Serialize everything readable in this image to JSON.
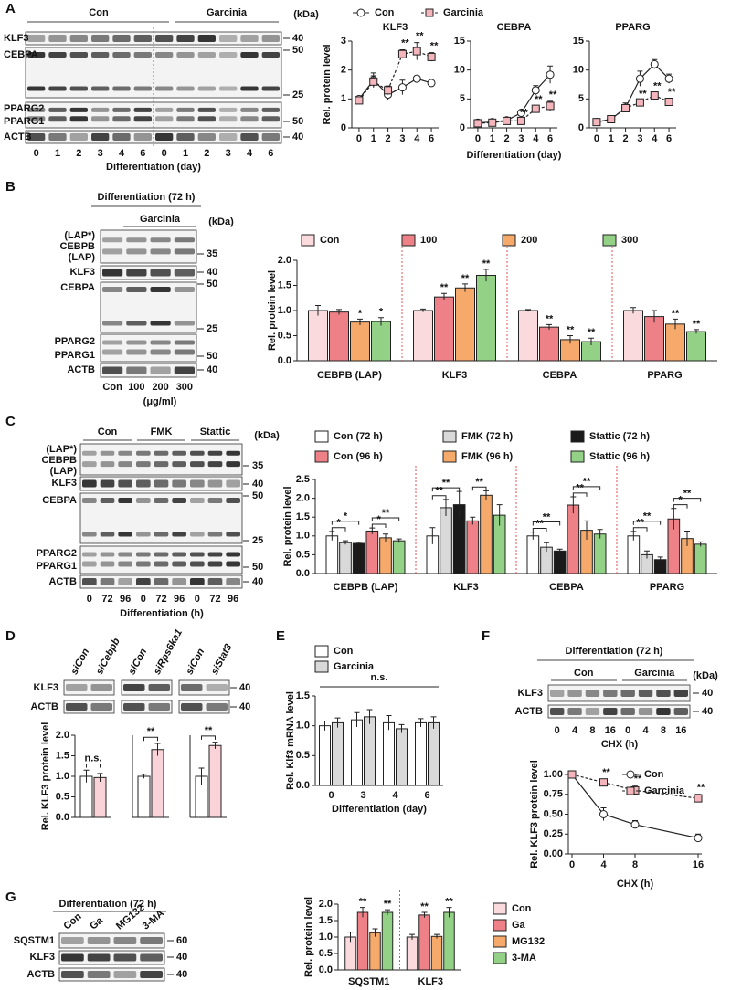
{
  "panel_labels": [
    "A",
    "B",
    "C",
    "D",
    "E",
    "F",
    "G"
  ],
  "blots": {
    "A": {
      "groups": [
        "Con",
        "Garcinia"
      ],
      "kda_header": "(kDa)",
      "rows": [
        "KLF3",
        "CEBPA",
        "PPARG2",
        "PPARG1",
        "ACTB"
      ],
      "markers": [
        "40",
        "50",
        "25",
        "50",
        "40"
      ],
      "lanes": [
        "0",
        "1",
        "2",
        "3",
        "4",
        "6",
        "0",
        "1",
        "2",
        "3",
        "4",
        "6"
      ],
      "xlabel": "Differentiation (day)"
    },
    "B": {
      "header": "Differentiation (72 h)",
      "group": "Garcinia",
      "kda_header": "(kDa)",
      "rows": [
        "(LAP*)",
        "CEBPB",
        "(LAP)",
        "KLF3",
        "CEBPA",
        "PPARG2",
        "PPARG1",
        "ACTB"
      ],
      "markers": [
        "35",
        "40",
        "50",
        "25",
        "50",
        "40"
      ],
      "lanes": [
        "Con",
        "100",
        "200",
        "300"
      ],
      "unit": "(μg/ml)"
    },
    "C": {
      "groups": [
        "Con",
        "FMK",
        "Stattic"
      ],
      "kda_header": "(kDa)",
      "rows": [
        "(LAP*)",
        "CEBPB",
        "(LAP)",
        "KLF3",
        "CEBPA",
        "PPARG2",
        "PPARG1",
        "ACTB"
      ],
      "markers": [
        "35",
        "40",
        "50",
        "25",
        "50",
        "40"
      ],
      "lanes": [
        "0",
        "72",
        "96",
        "0",
        "72",
        "96",
        "0",
        "72",
        "96"
      ],
      "xlabel": "Differentiation (h)"
    },
    "D": {
      "lanes": [
        "siCon",
        "siCebpb",
        "siCon",
        "siRps6ka1",
        "siCon",
        "siStat3"
      ],
      "rows": [
        "KLF3",
        "ACTB"
      ],
      "markers": [
        "40",
        "40"
      ]
    },
    "F": {
      "header": "Differentiation (72 h)",
      "groups": [
        "Con",
        "Garcinia"
      ],
      "kda_header": "(kDa)",
      "rows": [
        "KLF3",
        "ACTB"
      ],
      "markers": [
        "40",
        "40"
      ],
      "lanes": [
        "0",
        "4",
        "8",
        "16",
        "0",
        "4",
        "8",
        "16"
      ],
      "xlabel": "CHX (h)"
    },
    "G": {
      "header": "Differentiation (72 h)",
      "lanes": [
        "Con",
        "Ga",
        "MG132",
        "3-MA"
      ],
      "rows": [
        "SQSTM1",
        "KLF3",
        "ACTB"
      ],
      "markers": [
        "60",
        "40",
        "40"
      ]
    }
  },
  "chart_data": [
    {
      "type": "line",
      "title": "KLF3",
      "ylabel": "Rel. protein level",
      "categories": [
        "0",
        "1",
        "2",
        "3",
        "4",
        "6"
      ],
      "ylim": [
        0,
        3
      ],
      "yticks": [
        0,
        1,
        2,
        3
      ],
      "series": [
        {
          "name": "Con",
          "color": "#ffffff",
          "marker": "circle",
          "line": "solid",
          "values": [
            1.0,
            1.65,
            1.15,
            1.4,
            1.7,
            1.55
          ],
          "errors": [
            0.08,
            0.25,
            0.2,
            0.25,
            0.1,
            0.05
          ]
        },
        {
          "name": "Garcinia",
          "color": "#f4b6bc",
          "marker": "square",
          "line": "dashed",
          "values": [
            0.95,
            1.6,
            1.3,
            2.55,
            2.65,
            2.45
          ],
          "errors": [
            0.05,
            0.2,
            0.15,
            0.15,
            0.3,
            0.15
          ],
          "sig": [
            null,
            null,
            null,
            "**",
            "**",
            "**"
          ]
        }
      ]
    },
    {
      "type": "line",
      "title": "CEBPA",
      "xlabel": "Differentiation (day)",
      "categories": [
        "0",
        "1",
        "2",
        "3",
        "4",
        "6"
      ],
      "ylim": [
        0,
        15
      ],
      "yticks": [
        0,
        5,
        10,
        15
      ],
      "series": [
        {
          "color": "#ffffff",
          "marker": "circle",
          "line": "solid",
          "values": [
            0.9,
            1.0,
            1.3,
            2.6,
            6.5,
            9.2
          ],
          "errors": [
            0.2,
            0.2,
            0.2,
            0.4,
            0.8,
            1.5
          ]
        },
        {
          "color": "#f4b6bc",
          "marker": "square",
          "line": "dashed",
          "values": [
            0.8,
            0.9,
            1.2,
            1.2,
            3.3,
            3.8
          ],
          "errors": [
            0.2,
            0.2,
            0.2,
            0.3,
            0.5,
            0.8
          ],
          "sig": [
            null,
            null,
            null,
            "**",
            "**",
            "**"
          ]
        }
      ]
    },
    {
      "type": "line",
      "title": "PPARG",
      "categories": [
        "0",
        "1",
        "2",
        "3",
        "4",
        "6"
      ],
      "ylim": [
        0,
        15
      ],
      "yticks": [
        0,
        5,
        10,
        15
      ],
      "series": [
        {
          "color": "#ffffff",
          "marker": "circle",
          "line": "solid",
          "values": [
            1.0,
            1.5,
            3.5,
            8.5,
            11.0,
            8.5
          ],
          "errors": [
            0.3,
            0.3,
            0.8,
            1.3,
            0.8,
            0.8
          ]
        },
        {
          "color": "#f4b6bc",
          "marker": "square",
          "line": "dashed",
          "values": [
            1.0,
            1.5,
            3.4,
            4.4,
            5.6,
            4.5
          ],
          "errors": [
            0.3,
            0.3,
            0.6,
            0.3,
            0.5,
            0.5
          ],
          "sig": [
            null,
            null,
            null,
            "**",
            "**",
            "**"
          ]
        }
      ]
    },
    {
      "type": "bar",
      "ylabel": "Rel. protein level",
      "categories": [
        "CEBPB (LAP)",
        "KLF3",
        "CEBPA",
        "PPARG"
      ],
      "ylim": [
        0,
        2
      ],
      "yticks": [
        {
          "value": 0,
          "label": "0.0"
        },
        {
          "value": 0.5,
          "label": "0.5"
        },
        {
          "value": 1,
          "label": "1.0"
        },
        {
          "value": 1.5,
          "label": "1.5"
        },
        {
          "value": 2,
          "label": "2.0"
        }
      ],
      "series": [
        {
          "name": "Con",
          "color": "#fadadd",
          "values": [
            1.0,
            1.0,
            1.0,
            1.0
          ],
          "errors": [
            0.1,
            0.03,
            0.02,
            0.06
          ]
        },
        {
          "name": "100",
          "color": "#ee8088",
          "values": [
            0.97,
            1.27,
            0.67,
            0.88
          ],
          "errors": [
            0.05,
            0.07,
            0.05,
            0.12
          ],
          "sig": [
            null,
            "**",
            "**",
            null
          ]
        },
        {
          "name": "200",
          "color": "#f5a96a",
          "values": [
            0.77,
            1.45,
            0.42,
            0.73
          ],
          "errors": [
            0.06,
            0.08,
            0.08,
            0.1
          ],
          "sig": [
            "*",
            "**",
            "**",
            "**"
          ]
        },
        {
          "name": "300",
          "color": "#93d187",
          "values": [
            0.78,
            1.7,
            0.38,
            0.58
          ],
          "errors": [
            0.08,
            0.12,
            0.07,
            0.04
          ],
          "sig": [
            "*",
            "**",
            "**",
            "**"
          ]
        }
      ]
    },
    {
      "type": "bar",
      "ylabel": "Rel. protein level",
      "categories": [
        "CEBPB (LAP)",
        "KLF3",
        "CEBPA",
        "PPARG"
      ],
      "ylim": [
        0,
        2.5
      ],
      "yticks": [
        {
          "value": 0,
          "label": "0.0"
        },
        {
          "value": 0.5,
          "label": "0.5"
        },
        {
          "value": 1,
          "label": "1.0"
        },
        {
          "value": 1.5,
          "label": "1.5"
        },
        {
          "value": 2,
          "label": "2.0"
        },
        {
          "value": 2.5,
          "label": "2.5"
        }
      ],
      "series": [
        {
          "name": "Con (72 h)",
          "color": "#ffffff",
          "values": [
            1.0,
            1.0,
            1.0,
            1.0
          ],
          "errors": [
            0.12,
            0.22,
            0.1,
            0.12
          ]
        },
        {
          "name": "FMK (72 h)",
          "color": "#d9d9d9",
          "values": [
            0.82,
            1.75,
            0.7,
            0.5
          ],
          "errors": [
            0.05,
            0.22,
            0.12,
            0.1
          ]
        },
        {
          "name": "Stattic (72 h)",
          "color": "#1a1a1a",
          "values": [
            0.8,
            1.83,
            0.6,
            0.37
          ],
          "errors": [
            0.03,
            0.35,
            0.05,
            0.07
          ]
        },
        {
          "name": "Con (96 h)",
          "color": "#ee8088",
          "values": [
            1.13,
            1.4,
            1.82,
            1.45
          ],
          "errors": [
            0.08,
            0.1,
            0.22,
            0.28
          ]
        },
        {
          "name": "FMK (96 h)",
          "color": "#f5a96a",
          "values": [
            0.95,
            2.08,
            1.15,
            0.93
          ],
          "errors": [
            0.1,
            0.12,
            0.25,
            0.2
          ]
        },
        {
          "name": "Stattic (96 h)",
          "color": "#93d187",
          "values": [
            0.87,
            1.55,
            1.05,
            0.78
          ],
          "errors": [
            0.05,
            0.28,
            0.12,
            0.06
          ]
        }
      ],
      "brackets": [
        {
          "category": "CEBPB (LAP)",
          "between": [
            "Con (72 h)",
            "FMK (72 h)"
          ],
          "label": "*"
        },
        {
          "category": "CEBPB (LAP)",
          "between": [
            "Con (72 h)",
            "Stattic (72 h)"
          ],
          "label": "*"
        },
        {
          "category": "CEBPB (LAP)",
          "between": [
            "Con (96 h)",
            "FMK (96 h)"
          ],
          "label": "*"
        },
        {
          "category": "CEBPB (LAP)",
          "between": [
            "Con (96 h)",
            "Stattic (96 h)"
          ],
          "label": "**"
        },
        {
          "category": "KLF3",
          "between": [
            "Con (72 h)",
            "FMK (72 h)"
          ],
          "label": "**"
        },
        {
          "category": "KLF3",
          "between": [
            "Con (72 h)",
            "Stattic (72 h)"
          ],
          "label": "**"
        },
        {
          "category": "KLF3",
          "between": [
            "Con (96 h)",
            "FMK (96 h)"
          ],
          "label": "**"
        },
        {
          "category": "CEBPA",
          "between": [
            "Con (72 h)",
            "FMK (72 h)"
          ],
          "label": "**"
        },
        {
          "category": "CEBPA",
          "between": [
            "Con (72 h)",
            "Stattic (72 h)"
          ],
          "label": "**"
        },
        {
          "category": "CEBPA",
          "between": [
            "Con (96 h)",
            "FMK (96 h)"
          ],
          "label": "**"
        },
        {
          "category": "CEBPA",
          "between": [
            "Con (96 h)",
            "Stattic (96 h)"
          ],
          "label": "**"
        },
        {
          "category": "PPARG",
          "between": [
            "Con (72 h)",
            "FMK (72 h)"
          ],
          "label": "**"
        },
        {
          "category": "PPARG",
          "between": [
            "Con (72 h)",
            "Stattic (72 h)"
          ],
          "label": "**"
        },
        {
          "category": "PPARG",
          "between": [
            "Con (96 h)",
            "FMK (96 h)"
          ],
          "label": "*"
        },
        {
          "category": "PPARG",
          "between": [
            "Con (96 h)",
            "Stattic (96 h)"
          ],
          "label": "**"
        }
      ]
    },
    {
      "type": "bar",
      "ylabel": "Rel. KLF3 protein level",
      "ylim": [
        0,
        2
      ],
      "yticks": [
        {
          "value": 0,
          "label": "0.0"
        },
        {
          "value": 0.5,
          "label": "0.5"
        },
        {
          "value": 1,
          "label": "1.0"
        },
        {
          "value": 1.5,
          "label": "1.5"
        },
        {
          "value": 2,
          "label": "2.0"
        }
      ],
      "values": [
        1.0,
        0.97
      ],
      "errors": [
        0.15,
        0.1
      ],
      "colors": [
        "#ffffff",
        "#f9d3d8"
      ],
      "annotation": "n.s."
    },
    {
      "type": "bar",
      "ylim": [
        0,
        2
      ],
      "values": [
        1.0,
        1.65
      ],
      "errors": [
        0.05,
        0.15
      ],
      "colors": [
        "#ffffff",
        "#f9d3d8"
      ],
      "annotation": "**"
    },
    {
      "type": "bar",
      "ylim": [
        0,
        2
      ],
      "values": [
        1.0,
        1.75
      ],
      "errors": [
        0.2,
        0.08
      ],
      "colors": [
        "#ffffff",
        "#f9d3d8"
      ],
      "annotation": "**"
    },
    {
      "type": "bar",
      "ylabel": "Rel. Klf3 mRNA level",
      "xlabel": "Differentiation (day)",
      "categories": [
        "0",
        "3",
        "4",
        "6"
      ],
      "ylim": [
        0,
        1.5
      ],
      "yticks": [
        {
          "value": 0,
          "label": "0.0"
        },
        {
          "value": 0.5,
          "label": "0.5"
        },
        {
          "value": 1,
          "label": "1.0"
        },
        {
          "value": 1.5,
          "label": "1.5"
        }
      ],
      "series": [
        {
          "name": "Con",
          "color": "#ffffff",
          "values": [
            1.0,
            1.1,
            1.05,
            1.05
          ],
          "errors": [
            0.08,
            0.12,
            0.12,
            0.07
          ]
        },
        {
          "name": "Garcinia",
          "color": "#d9d9d9",
          "values": [
            1.05,
            1.15,
            0.95,
            1.05
          ],
          "errors": [
            0.08,
            0.12,
            0.07,
            0.1
          ]
        }
      ],
      "annotation": "n.s."
    },
    {
      "type": "line",
      "ylabel": "Rel. KLF3 protein level",
      "xlabel": "CHX (h)",
      "x": [
        0,
        4,
        8,
        16
      ],
      "xlim": [
        0,
        16
      ],
      "xticks": [
        0,
        4,
        8,
        16
      ],
      "ylim": [
        0,
        1
      ],
      "yticks": [
        {
          "value": 0,
          "label": "0.00"
        },
        {
          "value": 0.25,
          "label": "0.25"
        },
        {
          "value": 0.5,
          "label": "0.50"
        },
        {
          "value": 0.75,
          "label": "0.75"
        },
        {
          "value": 1,
          "label": "1.00"
        }
      ],
      "series": [
        {
          "name": "Con",
          "color": "#ffffff",
          "marker": "circle",
          "line": "solid",
          "values": [
            1.0,
            0.5,
            0.37,
            0.2
          ],
          "errors": [
            0.02,
            0.08,
            0.05,
            0.05
          ]
        },
        {
          "name": "Garcinia",
          "color": "#f4b6bc",
          "marker": "square",
          "line": "dashed",
          "values": [
            1.0,
            0.9,
            0.8,
            0.7
          ],
          "errors": [
            0.02,
            0.04,
            0.06,
            0.05
          ],
          "sig": [
            null,
            "**",
            "**",
            "**"
          ]
        }
      ]
    },
    {
      "type": "bar",
      "ylabel": "Rel. protein level",
      "categories": [
        "SQSTM1",
        "KLF3"
      ],
      "ylim": [
        0,
        2
      ],
      "yticks": [
        {
          "value": 0,
          "label": "0.0"
        },
        {
          "value": 0.5,
          "label": "0.5"
        },
        {
          "value": 1,
          "label": "1.0"
        },
        {
          "value": 1.5,
          "label": "1.5"
        },
        {
          "value": 2,
          "label": "2.0"
        }
      ],
      "series": [
        {
          "name": "Con",
          "color": "#fadadd",
          "values": [
            1.0,
            1.0
          ],
          "errors": [
            0.15,
            0.08
          ]
        },
        {
          "name": "Ga",
          "color": "#ee8088",
          "values": [
            1.75,
            1.67
          ],
          "errors": [
            0.15,
            0.08
          ],
          "sig": [
            "**",
            "**"
          ]
        },
        {
          "name": "MG132",
          "color": "#f5a96a",
          "values": [
            1.13,
            1.02
          ],
          "errors": [
            0.12,
            0.06
          ]
        },
        {
          "name": "3-MA",
          "color": "#93d187",
          "values": [
            1.75,
            1.75
          ],
          "errors": [
            0.08,
            0.15
          ],
          "sig": [
            "**",
            "**"
          ]
        }
      ]
    }
  ]
}
